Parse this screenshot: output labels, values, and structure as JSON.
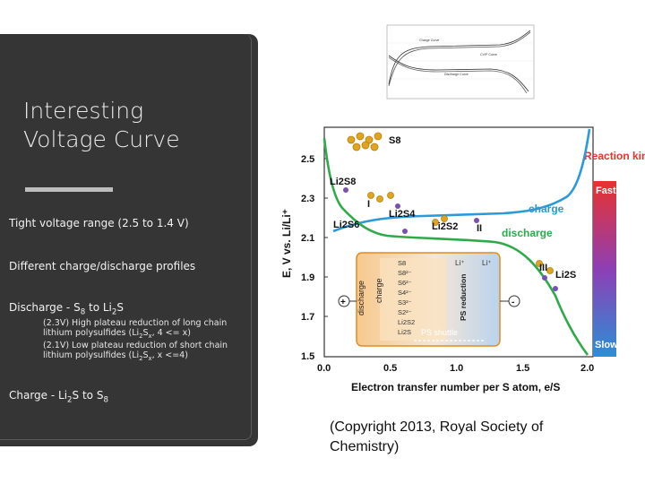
{
  "slide": {
    "title_line1": "Interesting",
    "title_line2": "Voltage Curve",
    "bullet1": "Tight voltage range (2.5 to 1.4 V)",
    "bullet2": "Different charge/discharge profiles",
    "bullet3": {
      "prefix": "Discharge - S",
      "sub1": "8",
      "mid": " to Li",
      "sub2": "2",
      "suffix": "S"
    },
    "sub1_line1": "(2.3V) High plateau reduction of long chain",
    "sub1_line2": {
      "prefix": "lithium polysulfides (Li",
      "sub1": "2",
      "mid": "S",
      "sub2": "x",
      "suffix": ", 4 <= x)"
    },
    "sub2_line1": "(2.1V) Low plateau reduction of short chain",
    "sub2_line2": {
      "prefix": "lithium polysulfides (Li",
      "sub1": "2",
      "mid": "S",
      "sub2": "x",
      "suffix": ", x <=4)"
    },
    "bullet4": {
      "prefix": "Charge - Li",
      "sub1": "2",
      "mid": "S to S",
      "sub2": "8"
    },
    "copyright": "(Copyright 2013, Royal Society of Chemistry)"
  },
  "figure": {
    "y_axis_label": "E, V vs. Li/Li⁺",
    "x_axis_label": "Electron transfer number per S atom, e/S",
    "y_ticks": [
      "2.5",
      "2.3",
      "2.1",
      "1.9",
      "1.7",
      "1.5"
    ],
    "x_ticks": [
      "0.0",
      "0.5",
      "1.0",
      "1.5",
      "2.0"
    ],
    "species": {
      "s8": "S8",
      "li2s8": "Li2S8",
      "li2s6": "Li2S6",
      "li2s4": "Li2S4",
      "li2s2": "Li2S2",
      "li2s": "Li2S"
    },
    "stages": {
      "i": "I",
      "ii": "II",
      "iii": "III"
    },
    "charge_label": "charge",
    "discharge_label": "discharge",
    "kinetics_title": "Reaction kinetics",
    "kinetics_fast": "Fast",
    "kinetics_slow": "Slow",
    "inset": {
      "discharge": "discharge",
      "charge": "charge",
      "ps_reduction": "PS reduction",
      "ps_shuttle": "PS shuttle",
      "li_ion": "Li⁺",
      "li_plus": "Li⁺",
      "plus": "+",
      "minus": "-",
      "ps_list": [
        "S8",
        "S8²⁻",
        "S6²⁻",
        "S4²⁻",
        "S3²⁻",
        "S2²⁻",
        "Li2S2",
        "Li2S"
      ]
    },
    "thumbnail_labels": {
      "charge": "Charge Curve",
      "discharge": "Discharge Curve",
      "cv": "CV/P Curve"
    },
    "colors": {
      "charge_curve": "#2b9ad8",
      "discharge_curve": "#2faa4a",
      "kinetics_fast": "#e8322d",
      "kinetics_slow": "#2b8fd6",
      "panel_bg": "#353535"
    }
  }
}
